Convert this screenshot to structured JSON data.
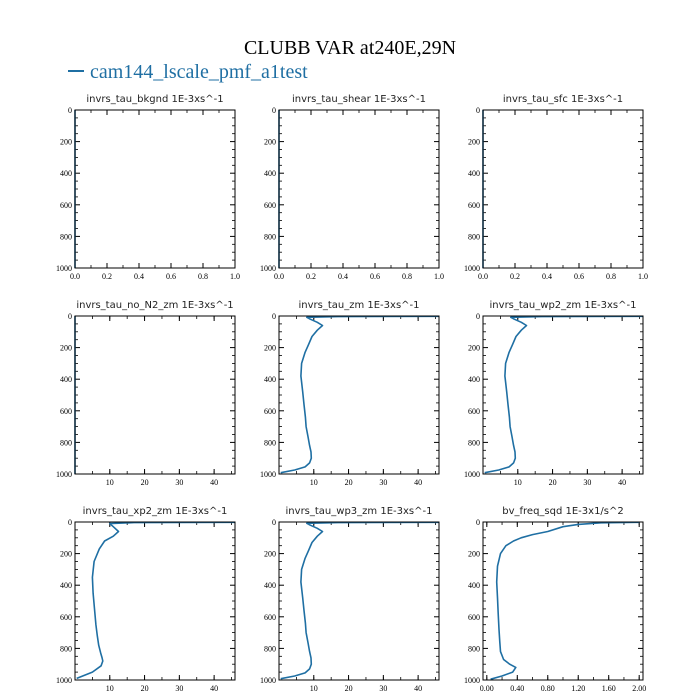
{
  "title": "CLUBB VAR at240E,29N",
  "legend": {
    "label": "cam144_lscale_pmf_a1test",
    "color": "#1f6fa3"
  },
  "chart_data": [
    {
      "type": "line",
      "title": "invrs_tau_bkgnd   1E-3xs^-1",
      "xlim": [
        0,
        1
      ],
      "ylim": [
        1000,
        0
      ],
      "xticks": [
        0,
        0.2,
        0.4,
        0.6,
        0.8,
        1
      ],
      "xticklabels": [
        "0.0",
        "0.2",
        "0.4",
        "0.6",
        "0.8",
        "1.0"
      ],
      "yticks": [
        0,
        200,
        400,
        600,
        800,
        1000
      ],
      "yticklabels": [
        "0",
        "200",
        "400",
        "600",
        "800",
        "1000"
      ],
      "series": [
        {
          "x": [
            0,
            0
          ],
          "y": [
            0,
            1000
          ]
        }
      ]
    },
    {
      "type": "line",
      "title": "invrs_tau_shear   1E-3xs^-1",
      "xlim": [
        0,
        1
      ],
      "ylim": [
        1000,
        0
      ],
      "xticks": [
        0,
        0.2,
        0.4,
        0.6,
        0.8,
        1
      ],
      "xticklabels": [
        "0.0",
        "0.2",
        "0.4",
        "0.6",
        "0.8",
        "1.0"
      ],
      "yticks": [
        0,
        200,
        400,
        600,
        800,
        1000
      ],
      "yticklabels": [
        "0",
        "200",
        "400",
        "600",
        "800",
        "1000"
      ],
      "series": [
        {
          "x": [
            0,
            0
          ],
          "y": [
            0,
            1000
          ]
        }
      ]
    },
    {
      "type": "line",
      "title": "invrs_tau_sfc   1E-3xs^-1",
      "xlim": [
        0,
        1
      ],
      "ylim": [
        1000,
        0
      ],
      "xticks": [
        0,
        0.2,
        0.4,
        0.6,
        0.8,
        1
      ],
      "xticklabels": [
        "0.0",
        "0.2",
        "0.4",
        "0.6",
        "0.8",
        "1.0"
      ],
      "yticks": [
        0,
        200,
        400,
        600,
        800,
        1000
      ],
      "yticklabels": [
        "0",
        "200",
        "400",
        "600",
        "800",
        "1000"
      ],
      "series": [
        {
          "x": [
            0,
            0
          ],
          "y": [
            0,
            1000
          ]
        }
      ]
    },
    {
      "type": "line",
      "title": "invrs_tau_no_N2_zm   1E-3xs^-1",
      "xlim": [
        0,
        46
      ],
      "ylim": [
        1000,
        0
      ],
      "xticks": [
        10,
        20,
        30,
        40
      ],
      "xticklabels": [
        "10",
        "20",
        "30",
        "40"
      ],
      "yticks": [
        0,
        200,
        400,
        600,
        800,
        1000
      ],
      "yticklabels": [
        "0",
        "200",
        "400",
        "600",
        "800",
        "1000"
      ],
      "series": [
        {
          "x": [
            0,
            0
          ],
          "y": [
            0,
            1000
          ]
        }
      ]
    },
    {
      "type": "line",
      "title": "invrs_tau_zm   1E-3xs^-1",
      "xlim": [
        0,
        46
      ],
      "ylim": [
        1000,
        0
      ],
      "xticks": [
        10,
        20,
        30,
        40
      ],
      "xticklabels": [
        "10",
        "20",
        "30",
        "40"
      ],
      "yticks": [
        0,
        200,
        400,
        600,
        800,
        1000
      ],
      "yticklabels": [
        "0",
        "200",
        "400",
        "600",
        "800",
        "1000"
      ],
      "series": [
        {
          "x": [
            46,
            17,
            8,
            9,
            11,
            12.5,
            11,
            9.5,
            8.5,
            7.5,
            6.5,
            6.3,
            6.8,
            7.2,
            7.6,
            7.8,
            8.3,
            8.8,
            9.2,
            9.3,
            8.8,
            7.5,
            4.5,
            0.5
          ],
          "y": [
            2,
            4,
            8,
            20,
            40,
            60,
            90,
            130,
            180,
            230,
            300,
            380,
            480,
            560,
            640,
            700,
            760,
            820,
            860,
            900,
            930,
            955,
            975,
            992
          ]
        }
      ]
    },
    {
      "type": "line",
      "title": "invrs_tau_wp2_zm   1E-3xs^-1",
      "xlim": [
        0,
        46
      ],
      "ylim": [
        1000,
        0
      ],
      "xticks": [
        10,
        20,
        30,
        40
      ],
      "xticklabels": [
        "10",
        "20",
        "30",
        "40"
      ],
      "yticks": [
        0,
        200,
        400,
        600,
        800,
        1000
      ],
      "yticklabels": [
        "0",
        "200",
        "400",
        "600",
        "800",
        "1000"
      ],
      "series": [
        {
          "x": [
            46,
            17,
            8,
            9,
            11,
            12.5,
            11,
            9.5,
            8.5,
            7.5,
            6.5,
            6.3,
            6.8,
            7.2,
            7.6,
            7.8,
            8.3,
            8.8,
            9.2,
            9.3,
            8.8,
            7.5,
            4.5,
            0.5
          ],
          "y": [
            2,
            4,
            8,
            20,
            40,
            60,
            90,
            130,
            180,
            230,
            300,
            380,
            480,
            560,
            640,
            700,
            760,
            820,
            860,
            900,
            930,
            955,
            975,
            992
          ]
        }
      ]
    },
    {
      "type": "line",
      "title": "invrs_tau_xp2_zm   1E-3xs^-1",
      "xlim": [
        0,
        46
      ],
      "ylim": [
        1000,
        0
      ],
      "xticks": [
        10,
        20,
        30,
        40
      ],
      "xticklabels": [
        "10",
        "20",
        "30",
        "40"
      ],
      "yticks": [
        0,
        200,
        400,
        600,
        800,
        1000
      ],
      "yticklabels": [
        "0",
        "200",
        "400",
        "600",
        "800",
        "1000"
      ],
      "series": [
        {
          "x": [
            46,
            17,
            10,
            11,
            12.5,
            11,
            8.5,
            7,
            5.5,
            5,
            5.2,
            5.6,
            6,
            6.4,
            6.8,
            7.4,
            7.8,
            8,
            7.5,
            5,
            0.5
          ],
          "y": [
            2,
            4,
            10,
            30,
            60,
            90,
            120,
            170,
            250,
            350,
            450,
            550,
            650,
            720,
            780,
            830,
            860,
            880,
            910,
            950,
            990
          ]
        }
      ]
    },
    {
      "type": "line",
      "title": "invrs_tau_wp3_zm   1E-3xs^-1",
      "xlim": [
        0,
        46
      ],
      "ylim": [
        1000,
        0
      ],
      "xticks": [
        10,
        20,
        30,
        40
      ],
      "xticklabels": [
        "10",
        "20",
        "30",
        "40"
      ],
      "yticks": [
        0,
        200,
        400,
        600,
        800,
        1000
      ],
      "yticklabels": [
        "0",
        "200",
        "400",
        "600",
        "800",
        "1000"
      ],
      "series": [
        {
          "x": [
            46,
            17,
            8,
            9,
            11,
            12.5,
            11,
            9.5,
            8.5,
            7.5,
            6.5,
            6.3,
            6.8,
            7.2,
            7.6,
            7.8,
            8.3,
            8.8,
            9.2,
            9.3,
            8.8,
            7.5,
            4.5,
            0.5
          ],
          "y": [
            2,
            4,
            8,
            20,
            40,
            60,
            90,
            130,
            180,
            230,
            300,
            380,
            480,
            560,
            640,
            700,
            760,
            820,
            860,
            900,
            930,
            955,
            975,
            992
          ]
        }
      ]
    },
    {
      "type": "line",
      "title": "bv_freq_sqd   1E-3x1/s^2",
      "xlim": [
        -0.05,
        2.05
      ],
      "ylim": [
        1000,
        0
      ],
      "xticks": [
        0,
        0.4,
        0.8,
        1.2,
        1.6,
        2.0
      ],
      "xticklabels": [
        "0.00",
        "0.40",
        "0.80",
        "1.20",
        "1.60",
        "2.00"
      ],
      "yticks": [
        0,
        200,
        400,
        600,
        800,
        1000
      ],
      "yticklabels": [
        "0",
        "200",
        "400",
        "600",
        "800",
        "1000"
      ],
      "series": [
        {
          "x": [
            2.0,
            1.5,
            1.2,
            1.0,
            0.8,
            0.6,
            0.45,
            0.35,
            0.25,
            0.18,
            0.14,
            0.13,
            0.14,
            0.15,
            0.16,
            0.17,
            0.18,
            0.22,
            0.3,
            0.38,
            0.34,
            0.2,
            0.05
          ],
          "y": [
            2,
            5,
            15,
            30,
            60,
            80,
            100,
            120,
            150,
            200,
            280,
            380,
            480,
            580,
            680,
            760,
            820,
            870,
            900,
            920,
            950,
            975,
            995
          ]
        }
      ]
    }
  ]
}
